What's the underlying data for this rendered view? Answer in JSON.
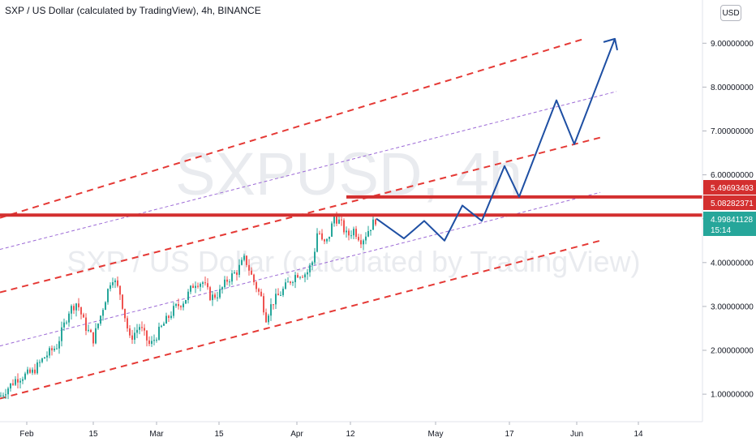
{
  "header": {
    "title": "SXP / US Dollar (calculated by TradingView), 4h, BINANCE"
  },
  "currency_button": "USD",
  "watermark": {
    "symbol": "SXPUSD, 4h",
    "description": "SXP / US Dollar (calculated by TradingView)"
  },
  "colors": {
    "up": "#26a69a",
    "down": "#ef5350",
    "channel_red": "#e53935",
    "channel_purple": "#9c6ad6",
    "resistance": "#d32f2f",
    "projection": "#1e4fa3",
    "price_badge": "#26a69a"
  },
  "price_axis": {
    "ticks": [
      "1.00000000",
      "2.00000000",
      "3.00000000",
      "4.00000000",
      "5.00000000",
      "6.00000000",
      "7.00000000",
      "8.00000000",
      "9.00000000"
    ],
    "labels": [
      {
        "text": "5.49693493",
        "sub": "",
        "value": 5.49693493,
        "color": "#d32f2f"
      },
      {
        "text": "5.08282371",
        "sub": "",
        "value": 5.08282371,
        "color": "#d32f2f"
      },
      {
        "text": "4.99841128",
        "sub": "15:14",
        "value": 4.99841128,
        "color": "#26a69a"
      }
    ]
  },
  "time_axis": {
    "labels": [
      "Feb",
      "15",
      "Mar",
      "15",
      "Apr",
      "12",
      "May",
      "17",
      "Jun",
      "14"
    ]
  },
  "chart_data": {
    "type": "candlestick",
    "symbol": "SXPUSD",
    "interval": "4h",
    "exchange": "BINANCE",
    "ylim": [
      0.2,
      9.8
    ],
    "x_ticks": [
      "Feb",
      "15",
      "Mar",
      "15",
      "Apr",
      "12",
      "May",
      "17",
      "Jun",
      "14"
    ],
    "last_price": 4.99841128,
    "countdown": "15:14",
    "price_path_keypoints": [
      [
        0,
        0.95
      ],
      [
        20,
        1.35
      ],
      [
        40,
        1.5
      ],
      [
        55,
        1.85
      ],
      [
        70,
        2.1
      ],
      [
        85,
        2.9
      ],
      [
        95,
        3.1
      ],
      [
        105,
        2.55
      ],
      [
        115,
        2.25
      ],
      [
        125,
        2.85
      ],
      [
        138,
        3.7
      ],
      [
        148,
        3.3
      ],
      [
        160,
        2.25
      ],
      [
        172,
        2.55
      ],
      [
        185,
        2.1
      ],
      [
        200,
        2.55
      ],
      [
        215,
        2.95
      ],
      [
        228,
        3.15
      ],
      [
        240,
        3.55
      ],
      [
        250,
        3.55
      ],
      [
        260,
        3.2
      ],
      [
        270,
        3.3
      ],
      [
        280,
        3.6
      ],
      [
        292,
        3.8
      ],
      [
        302,
        4.1
      ],
      [
        312,
        3.6
      ],
      [
        322,
        3.2
      ],
      [
        328,
        2.75
      ],
      [
        336,
        3.1
      ],
      [
        346,
        3.3
      ],
      [
        356,
        3.55
      ],
      [
        366,
        3.75
      ],
      [
        378,
        3.75
      ],
      [
        386,
        4.05
      ],
      [
        392,
        4.8
      ],
      [
        398,
        4.4
      ],
      [
        404,
        4.5
      ],
      [
        412,
        5.05
      ],
      [
        420,
        4.9
      ],
      [
        428,
        4.6
      ],
      [
        436,
        4.75
      ],
      [
        446,
        4.5
      ],
      [
        456,
        4.8
      ],
      [
        464,
        5.0
      ]
    ],
    "resistance_levels": [
      5.49693493,
      5.08282371
    ],
    "projection_path": [
      [
        464,
        5.0
      ],
      [
        498,
        4.55
      ],
      [
        523,
        4.95
      ],
      [
        548,
        4.5
      ],
      [
        570,
        5.3
      ],
      [
        594,
        4.95
      ],
      [
        622,
        6.2
      ],
      [
        640,
        5.5
      ],
      [
        686,
        7.7
      ],
      [
        708,
        6.7
      ],
      [
        758,
        9.1
      ]
    ],
    "channels": {
      "red_dashed": [
        {
          "from": [
            0,
            5.02
          ],
          "to": [
            720,
            9.1
          ]
        },
        {
          "from": [
            0,
            3.32
          ],
          "to": [
            740,
            6.85
          ]
        },
        {
          "from": [
            0,
            0.9
          ],
          "to": [
            740,
            4.5
          ]
        }
      ],
      "purple_dashed": [
        {
          "from": [
            0,
            4.3
          ],
          "to": [
            760,
            7.9
          ]
        },
        {
          "from": [
            0,
            2.1
          ],
          "to": [
            740,
            5.6
          ]
        }
      ]
    }
  }
}
